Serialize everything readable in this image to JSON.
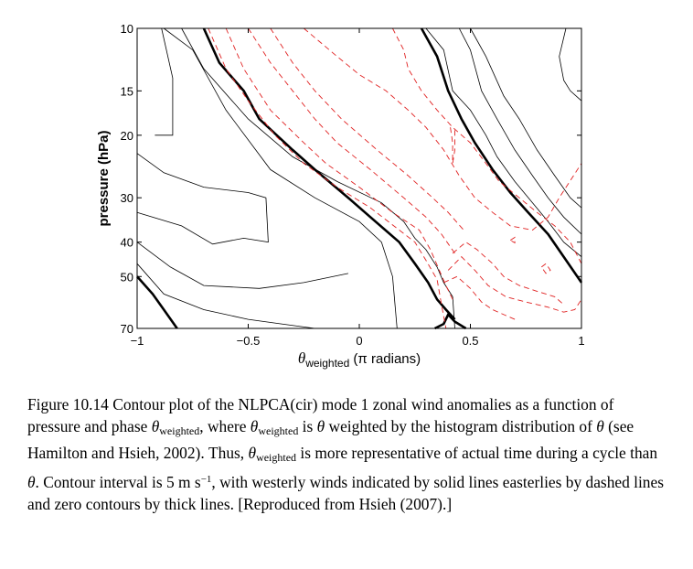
{
  "chart_data": {
    "type": "contour",
    "xlabel": {
      "symbol": "θ",
      "subscript": "weighted",
      "rest": " (π radians)"
    },
    "ylabel": "pressure (hPa)",
    "xlim": [
      -1,
      1
    ],
    "ylim": [
      70,
      10
    ],
    "y_scale": "log",
    "x_ticks": [
      -1,
      -0.5,
      0,
      0.5,
      1
    ],
    "x_tick_labels": [
      "−1",
      "−0.5",
      "0",
      "0.5",
      "1"
    ],
    "y_ticks": [
      10,
      15,
      20,
      30,
      40,
      50,
      70
    ],
    "y_tick_labels": [
      "10",
      "15",
      "20",
      "30",
      "40",
      "50",
      "70"
    ],
    "colors": {
      "westerly": "#000000",
      "easterly": "#e02020",
      "zero": "#000000"
    },
    "contours": [
      {
        "style": "solid",
        "points": [
          [
            -0.89,
            10
          ],
          [
            -0.84,
            13.8
          ],
          [
            -0.84,
            20
          ],
          [
            -0.92,
            20
          ]
        ]
      },
      {
        "style": "solid",
        "points": [
          [
            -1,
            22.5
          ],
          [
            -0.88,
            25.5
          ],
          [
            -0.7,
            28
          ],
          [
            -0.5,
            29
          ],
          [
            -0.42,
            30
          ],
          [
            -0.41,
            40
          ],
          [
            -0.52,
            39
          ],
          [
            -0.66,
            40.5
          ],
          [
            -0.8,
            36
          ],
          [
            -1,
            33
          ]
        ]
      },
      {
        "style": "solid",
        "points": [
          [
            -1,
            40
          ],
          [
            -0.85,
            47
          ],
          [
            -0.7,
            53
          ],
          [
            -0.45,
            54
          ],
          [
            -0.25,
            52
          ],
          [
            -0.05,
            49
          ]
        ]
      },
      {
        "style": "solid",
        "points": [
          [
            -1,
            46
          ],
          [
            -0.88,
            56
          ],
          [
            -0.7,
            62
          ],
          [
            -0.5,
            66
          ],
          [
            -0.35,
            68
          ],
          [
            -0.2,
            70
          ]
        ]
      },
      {
        "style": "solid",
        "points": [
          [
            -0.88,
            10
          ],
          [
            -0.75,
            11.5
          ],
          [
            -0.6,
            17
          ],
          [
            -0.4,
            25
          ],
          [
            -0.2,
            30
          ],
          [
            0,
            35
          ],
          [
            0.1,
            40
          ],
          [
            0.15,
            50
          ],
          [
            0.17,
            70
          ]
        ]
      },
      {
        "style": "solid",
        "points": [
          [
            -0.8,
            10
          ],
          [
            -0.7,
            13
          ],
          [
            -0.5,
            18
          ],
          [
            -0.3,
            23
          ],
          [
            -0.1,
            27
          ],
          [
            0.1,
            31
          ],
          [
            0.2,
            35
          ],
          [
            0.25,
            39
          ],
          [
            0.3,
            42
          ],
          [
            0.35,
            47
          ],
          [
            0.38,
            52
          ],
          [
            0.42,
            57
          ],
          [
            0.43,
            70
          ]
        ]
      },
      {
        "style": "solid",
        "points": [
          [
            0.3,
            10
          ],
          [
            0.38,
            11.5
          ],
          [
            0.42,
            15
          ],
          [
            0.5,
            17
          ],
          [
            0.57,
            20
          ],
          [
            0.62,
            23
          ],
          [
            0.7,
            27
          ],
          [
            0.78,
            31
          ],
          [
            0.85,
            35
          ],
          [
            0.92,
            40
          ],
          [
            1,
            44
          ]
        ]
      },
      {
        "style": "solid",
        "points": [
          [
            0.45,
            10
          ],
          [
            0.5,
            11.5
          ],
          [
            0.55,
            15
          ],
          [
            0.62,
            18
          ],
          [
            0.7,
            22
          ],
          [
            0.78,
            26
          ],
          [
            0.85,
            30
          ],
          [
            0.92,
            34
          ],
          [
            1,
            38
          ]
        ]
      },
      {
        "style": "solid",
        "points": [
          [
            0.5,
            10
          ],
          [
            0.57,
            12
          ],
          [
            0.65,
            15.5
          ],
          [
            0.72,
            18
          ],
          [
            0.8,
            22
          ],
          [
            0.88,
            26
          ],
          [
            0.95,
            30
          ],
          [
            1,
            32
          ]
        ]
      },
      {
        "style": "solid",
        "points": [
          [
            0.93,
            10
          ],
          [
            0.9,
            12
          ],
          [
            0.92,
            14
          ],
          [
            0.95,
            15
          ],
          [
            1,
            16
          ]
        ]
      },
      {
        "style": "zero",
        "points": [
          [
            -0.7,
            10
          ],
          [
            -0.63,
            12.5
          ],
          [
            -0.52,
            15
          ],
          [
            -0.45,
            18
          ],
          [
            -0.3,
            22
          ],
          [
            -0.2,
            25
          ],
          [
            -0.05,
            30
          ],
          [
            0.05,
            34
          ],
          [
            0.18,
            40
          ],
          [
            0.25,
            46
          ],
          [
            0.31,
            52
          ],
          [
            0.35,
            58
          ],
          [
            0.39,
            62
          ],
          [
            0.43,
            66
          ]
        ]
      },
      {
        "style": "zero",
        "points": [
          [
            -1,
            50
          ],
          [
            -0.93,
            56
          ],
          [
            -0.88,
            62
          ],
          [
            -0.82,
            70
          ]
        ]
      },
      {
        "style": "zero",
        "points": [
          [
            0.28,
            10
          ],
          [
            0.35,
            12
          ],
          [
            0.4,
            15
          ],
          [
            0.46,
            18
          ],
          [
            0.52,
            21
          ],
          [
            0.6,
            25
          ],
          [
            0.68,
            29
          ],
          [
            0.76,
            33
          ],
          [
            0.85,
            38
          ],
          [
            0.92,
            44
          ],
          [
            1,
            52
          ]
        ]
      },
      {
        "style": "zero",
        "points": [
          [
            0.34,
            70
          ],
          [
            0.38,
            68
          ],
          [
            0.4,
            64
          ],
          [
            0.43,
            67
          ],
          [
            0.48,
            70
          ]
        ]
      },
      {
        "style": "dashed",
        "points": [
          [
            -0.68,
            10
          ],
          [
            -0.6,
            13
          ],
          [
            -0.5,
            16
          ],
          [
            -0.38,
            20
          ],
          [
            -0.25,
            24
          ],
          [
            -0.1,
            28
          ],
          [
            0.05,
            32
          ],
          [
            0.18,
            37
          ],
          [
            0.25,
            40
          ],
          [
            0.3,
            45
          ],
          [
            0.35,
            51
          ],
          [
            0.37,
            60
          ],
          [
            0.39,
            70
          ]
        ]
      },
      {
        "style": "dashed",
        "points": [
          [
            -0.6,
            10
          ],
          [
            -0.52,
            13
          ],
          [
            -0.4,
            17
          ],
          [
            -0.25,
            21
          ],
          [
            -0.15,
            24
          ],
          [
            0,
            28
          ],
          [
            0.15,
            33
          ],
          [
            0.27,
            37
          ],
          [
            0.32,
            42
          ],
          [
            0.36,
            48
          ],
          [
            0.39,
            53
          ],
          [
            0.42,
            58
          ]
        ]
      },
      {
        "style": "dashed",
        "points": [
          [
            -0.5,
            10
          ],
          [
            -0.4,
            12.5
          ],
          [
            -0.3,
            15
          ],
          [
            -0.2,
            18
          ],
          [
            -0.1,
            21
          ],
          [
            0.05,
            25
          ],
          [
            0.2,
            30
          ],
          [
            0.3,
            34
          ],
          [
            0.37,
            38
          ],
          [
            0.43,
            43
          ]
        ]
      },
      {
        "style": "dashed",
        "points": [
          [
            -0.4,
            10
          ],
          [
            -0.3,
            12.5
          ],
          [
            -0.2,
            15
          ],
          [
            -0.08,
            18
          ],
          [
            0.08,
            22
          ],
          [
            0.22,
            26
          ],
          [
            0.33,
            30
          ],
          [
            0.4,
            33
          ],
          [
            0.47,
            37
          ]
        ]
      },
      {
        "style": "dashed",
        "points": [
          [
            -0.25,
            10
          ],
          [
            -0.1,
            12
          ],
          [
            0,
            13.5
          ],
          [
            0.12,
            15
          ],
          [
            0.22,
            17
          ],
          [
            0.3,
            19
          ],
          [
            0.38,
            22
          ],
          [
            0.45,
            26
          ],
          [
            0.52,
            30
          ],
          [
            0.6,
            33
          ],
          [
            0.68,
            36
          ],
          [
            0.78,
            37
          ],
          [
            0.85,
            34
          ],
          [
            0.9,
            30
          ],
          [
            1,
            24
          ]
        ]
      },
      {
        "style": "dashed",
        "points": [
          [
            0.15,
            10
          ],
          [
            0.2,
            11.5
          ],
          [
            0.22,
            13
          ],
          [
            0.28,
            15
          ],
          [
            0.35,
            17
          ],
          [
            0.42,
            19
          ],
          [
            0.5,
            21
          ],
          [
            0.57,
            24
          ],
          [
            0.63,
            27
          ],
          [
            0.72,
            30
          ],
          [
            0.8,
            33
          ],
          [
            0.88,
            36
          ],
          [
            0.95,
            40
          ],
          [
            1,
            46
          ]
        ]
      },
      {
        "style": "dashed",
        "points": [
          [
            0.42,
            43
          ],
          [
            0.48,
            40
          ],
          [
            0.53,
            42
          ],
          [
            0.6,
            46
          ],
          [
            0.65,
            50
          ],
          [
            0.72,
            53
          ],
          [
            0.8,
            55
          ],
          [
            0.88,
            57
          ],
          [
            0.92,
            60
          ]
        ]
      },
      {
        "style": "dashed",
        "points": [
          [
            0.4,
            48
          ],
          [
            0.46,
            44
          ],
          [
            0.52,
            48
          ],
          [
            0.58,
            53
          ],
          [
            0.66,
            57
          ],
          [
            0.75,
            59
          ],
          [
            0.85,
            61
          ],
          [
            0.92,
            63
          ],
          [
            0.97,
            62
          ],
          [
            1,
            58
          ]
        ]
      },
      {
        "style": "dashed",
        "points": [
          [
            0.38,
            52
          ],
          [
            0.44,
            50
          ],
          [
            0.5,
            54
          ],
          [
            0.55,
            59
          ],
          [
            0.6,
            62
          ],
          [
            0.65,
            64
          ],
          [
            0.7,
            66
          ]
        ]
      },
      {
        "style": "dashed",
        "points": [
          [
            0.41,
            19
          ],
          [
            0.42,
            21
          ],
          [
            0.42,
            24
          ],
          [
            0.43,
            22
          ],
          [
            0.43,
            19
          ]
        ]
      },
      {
        "style": "dashed",
        "points": [
          [
            0.68,
            39.5
          ],
          [
            0.7,
            38.8
          ],
          [
            0.7,
            40.2
          ],
          [
            0.68,
            39.5
          ]
        ]
      },
      {
        "style": "dashed",
        "points": [
          [
            0.82,
            47
          ],
          [
            0.84,
            46
          ],
          [
            0.86,
            48
          ],
          [
            0.84,
            49
          ],
          [
            0.82,
            47
          ]
        ]
      }
    ]
  },
  "caption": {
    "label": "Figure 10.14",
    "part1": " Contour plot of the NLPCA(cir) mode 1 zonal wind anomalies as a function of pressure and phase ",
    "theta": "θ",
    "sub": "weighted",
    "part2": ", where ",
    "part3": " is ",
    "part4": " weighted by the histogram distribution of ",
    "part5": " (see Hamilton and Hsieh, 2002). Thus, ",
    "part6": " is more representative of actual time during a cycle than ",
    "part7": ". Contour interval is 5 m s",
    "sup": "−1",
    "part8": ", with westerly winds indicated by solid lines easterlies by dashed lines and zero contours by thick lines. [Reproduced from Hsieh (2007).]"
  }
}
